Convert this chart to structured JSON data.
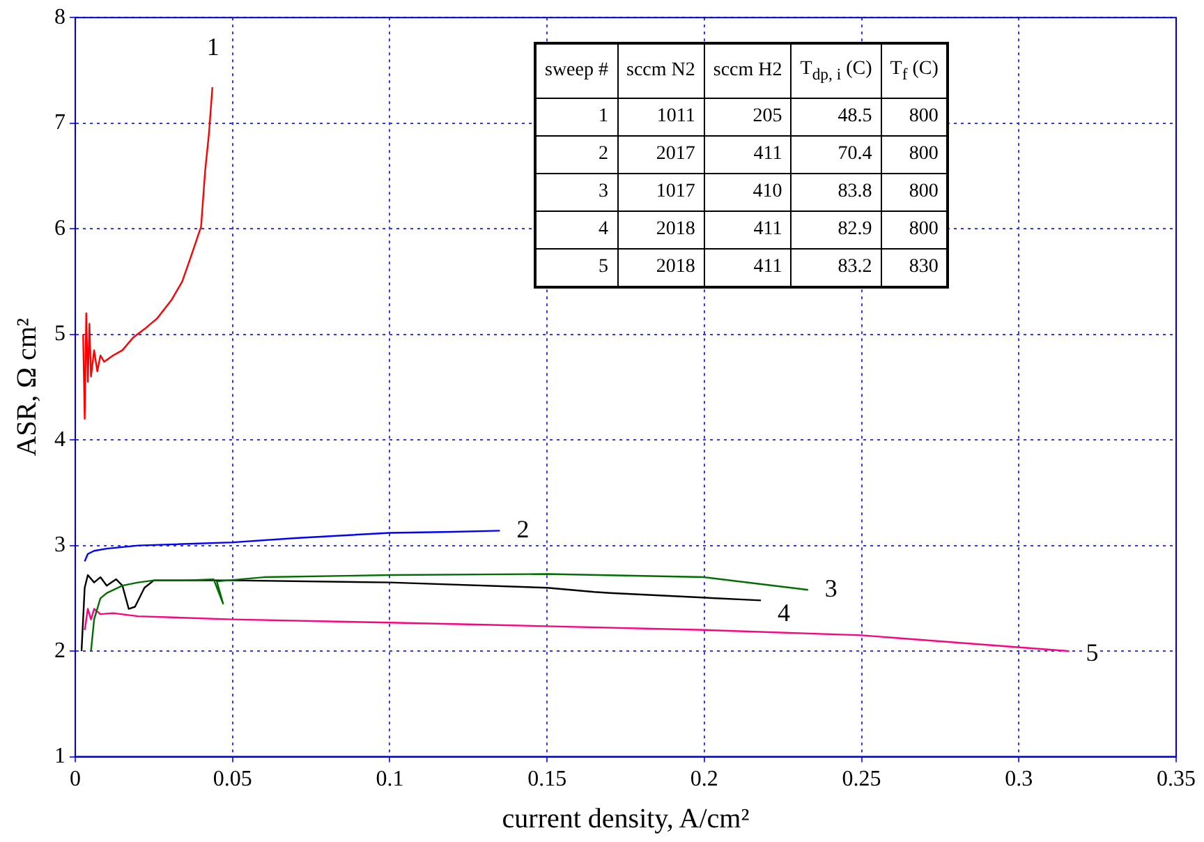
{
  "chart_data": {
    "type": "line",
    "xlabel": "current density, A/cm²",
    "ylabel": "ASR, Ω cm²",
    "xlim": [
      0,
      0.35
    ],
    "xticks": [
      0,
      0.05,
      0.1,
      0.15,
      0.2,
      0.25,
      0.3,
      0.35
    ],
    "ylim": [
      1,
      8
    ],
    "yticks": [
      1,
      2,
      3,
      4,
      5,
      6,
      7,
      8
    ],
    "grid": true,
    "marker": "none",
    "line_style": "solid",
    "series": [
      {
        "color": "#ff0000",
        "x": [
          0.0025,
          0.003,
          0.0035,
          0.004,
          0.0045,
          0.005,
          0.006,
          0.007,
          0.008,
          0.0092,
          0.012,
          0.015,
          0.0184,
          0.022,
          0.026,
          0.0307,
          0.034,
          0.0367,
          0.04,
          0.0413,
          0.0425,
          0.0436
        ],
        "values": [
          5.0,
          4.2,
          5.2,
          4.55,
          5.1,
          4.6,
          4.85,
          4.65,
          4.8,
          4.74,
          4.8,
          4.85,
          4.97,
          5.05,
          5.15,
          5.33,
          5.5,
          5.73,
          6.02,
          6.55,
          6.9,
          7.34
        ]
      },
      {
        "color": "#0000ff",
        "x": [
          0.003,
          0.004,
          0.006,
          0.01,
          0.02,
          0.03,
          0.05,
          0.07,
          0.1,
          0.12,
          0.135
        ],
        "values": [
          2.85,
          2.92,
          2.95,
          2.97,
          3.0,
          3.01,
          3.03,
          3.07,
          3.12,
          3.13,
          3.14
        ]
      },
      {
        "color": "#006e00",
        "x": [
          0.005,
          0.006,
          0.008,
          0.01,
          0.015,
          0.02,
          0.025,
          0.035,
          0.044,
          0.047,
          0.045,
          0.06,
          0.1,
          0.15,
          0.2,
          0.233
        ],
        "values": [
          2.0,
          2.3,
          2.5,
          2.55,
          2.62,
          2.65,
          2.67,
          2.67,
          2.68,
          2.45,
          2.66,
          2.7,
          2.72,
          2.73,
          2.7,
          2.58
        ]
      },
      {
        "color": "#000000",
        "x": [
          0.002,
          0.003,
          0.004,
          0.006,
          0.008,
          0.01,
          0.013,
          0.015,
          0.017,
          0.019,
          0.022,
          0.025,
          0.05,
          0.1,
          0.15,
          0.165,
          0.17,
          0.218
        ],
        "values": [
          2.0,
          2.6,
          2.72,
          2.65,
          2.7,
          2.62,
          2.68,
          2.62,
          2.4,
          2.42,
          2.6,
          2.67,
          2.67,
          2.65,
          2.6,
          2.56,
          2.55,
          2.48
        ]
      },
      {
        "color": "#ff0080",
        "x": [
          0.003,
          0.004,
          0.005,
          0.006,
          0.008,
          0.012,
          0.02,
          0.05,
          0.1,
          0.13,
          0.2,
          0.25,
          0.316
        ],
        "values": [
          2.2,
          2.4,
          2.3,
          2.4,
          2.35,
          2.36,
          2.33,
          2.3,
          2.27,
          2.25,
          2.2,
          2.15,
          2.0
        ]
      }
    ],
    "annotations": [
      "1",
      "2",
      "3",
      "4",
      "5",
      "sweep #",
      "sccm N2",
      "sccm H2",
      "T$_{dp, i}$ (C)",
      "T$_{f}$ (C)",
      "1",
      "1011",
      "205",
      "48.5",
      "800",
      "2",
      "2017",
      "411",
      "70.4",
      "800",
      "3",
      "1017",
      "410",
      "83.8",
      "800",
      "4",
      "2018",
      "411",
      "82.9",
      "800",
      "5",
      "2018",
      "411",
      "83.2",
      "830"
    ]
  }
}
